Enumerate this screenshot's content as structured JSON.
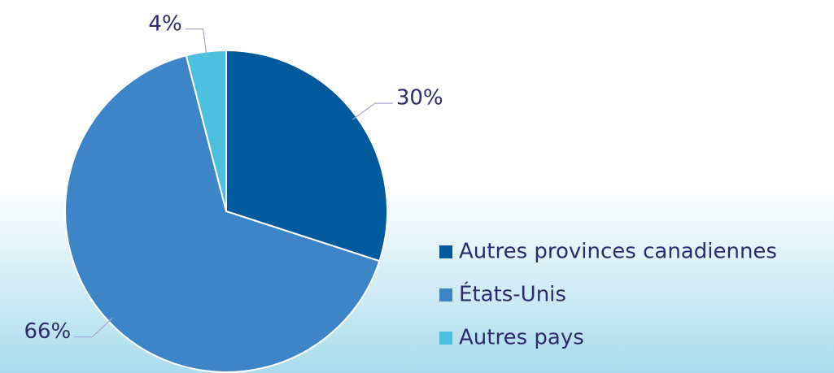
{
  "chart_data": {
    "type": "pie",
    "categories": [
      "Autres provinces canadiennes",
      "États-Unis",
      "Autres pays"
    ],
    "values": [
      30,
      66,
      4
    ],
    "value_labels": [
      "30%",
      "66%",
      "4%"
    ],
    "colors": [
      "#005a9e",
      "#3d85c6",
      "#4dc0e0"
    ],
    "legend": "right"
  }
}
